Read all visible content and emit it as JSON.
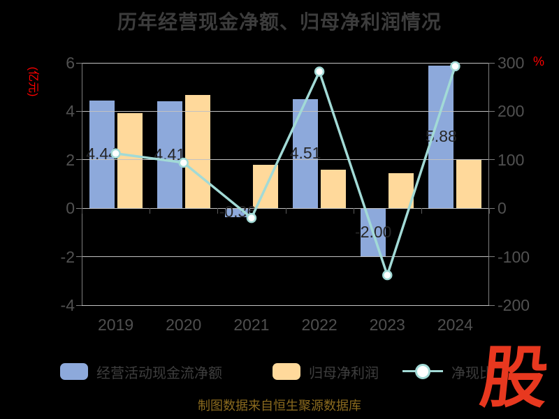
{
  "title": "历年经营现金净额、归母净利润情况",
  "left_axis": {
    "unit": "(亿元)",
    "ticks": [
      6,
      4,
      2,
      0,
      -2,
      -4
    ]
  },
  "right_axis": {
    "unit": "%",
    "ticks": [
      300,
      200,
      100,
      0,
      -100,
      -200
    ]
  },
  "chart_data": {
    "type": "bar+line",
    "categories": [
      "2019",
      "2020",
      "2021",
      "2022",
      "2023",
      "2024"
    ],
    "series": [
      {
        "name": "经营活动现金流净额",
        "type": "bar",
        "axis": "left",
        "unit": "亿元",
        "color": "#8da9db",
        "values": [
          4.44,
          4.41,
          -0.36,
          4.51,
          -2.0,
          5.88
        ],
        "labels": [
          "4.44",
          "4.41",
          "-0.36",
          "4.51",
          "-2.00",
          "5.88"
        ]
      },
      {
        "name": "归母净利润",
        "type": "bar",
        "axis": "left",
        "unit": "亿元",
        "color": "#ffd99b",
        "values": [
          3.92,
          4.68,
          1.78,
          1.6,
          1.45,
          1.98
        ]
      },
      {
        "name": "净现比",
        "type": "line",
        "axis": "right",
        "unit": "%",
        "color": "#a2dad6",
        "marker": "circle",
        "values": [
          113,
          94,
          -20,
          282,
          -138,
          293
        ]
      }
    ],
    "left_ylim": [
      -4,
      6
    ],
    "right_ylim": [
      -200,
      300
    ],
    "grid": true,
    "legend_position": "bottom"
  },
  "legend": {
    "items": [
      {
        "label": "经营活动现金流净额",
        "color": "#8da9db",
        "type": "bar"
      },
      {
        "label": "归母净利润",
        "color": "#ffd99b",
        "type": "bar"
      },
      {
        "label": "净现比",
        "color": "#a2dad6",
        "type": "line"
      }
    ]
  },
  "caption": "制图数据来自恒生聚源数据库",
  "logo": {
    "text": "股",
    "color": "#e8381f"
  },
  "colors": {
    "background": "#000000",
    "grid": "#c2c2c2",
    "axis_unit_red": "#ff0000",
    "bar_label": "#262626",
    "marker_fill": "#ffffff"
  }
}
